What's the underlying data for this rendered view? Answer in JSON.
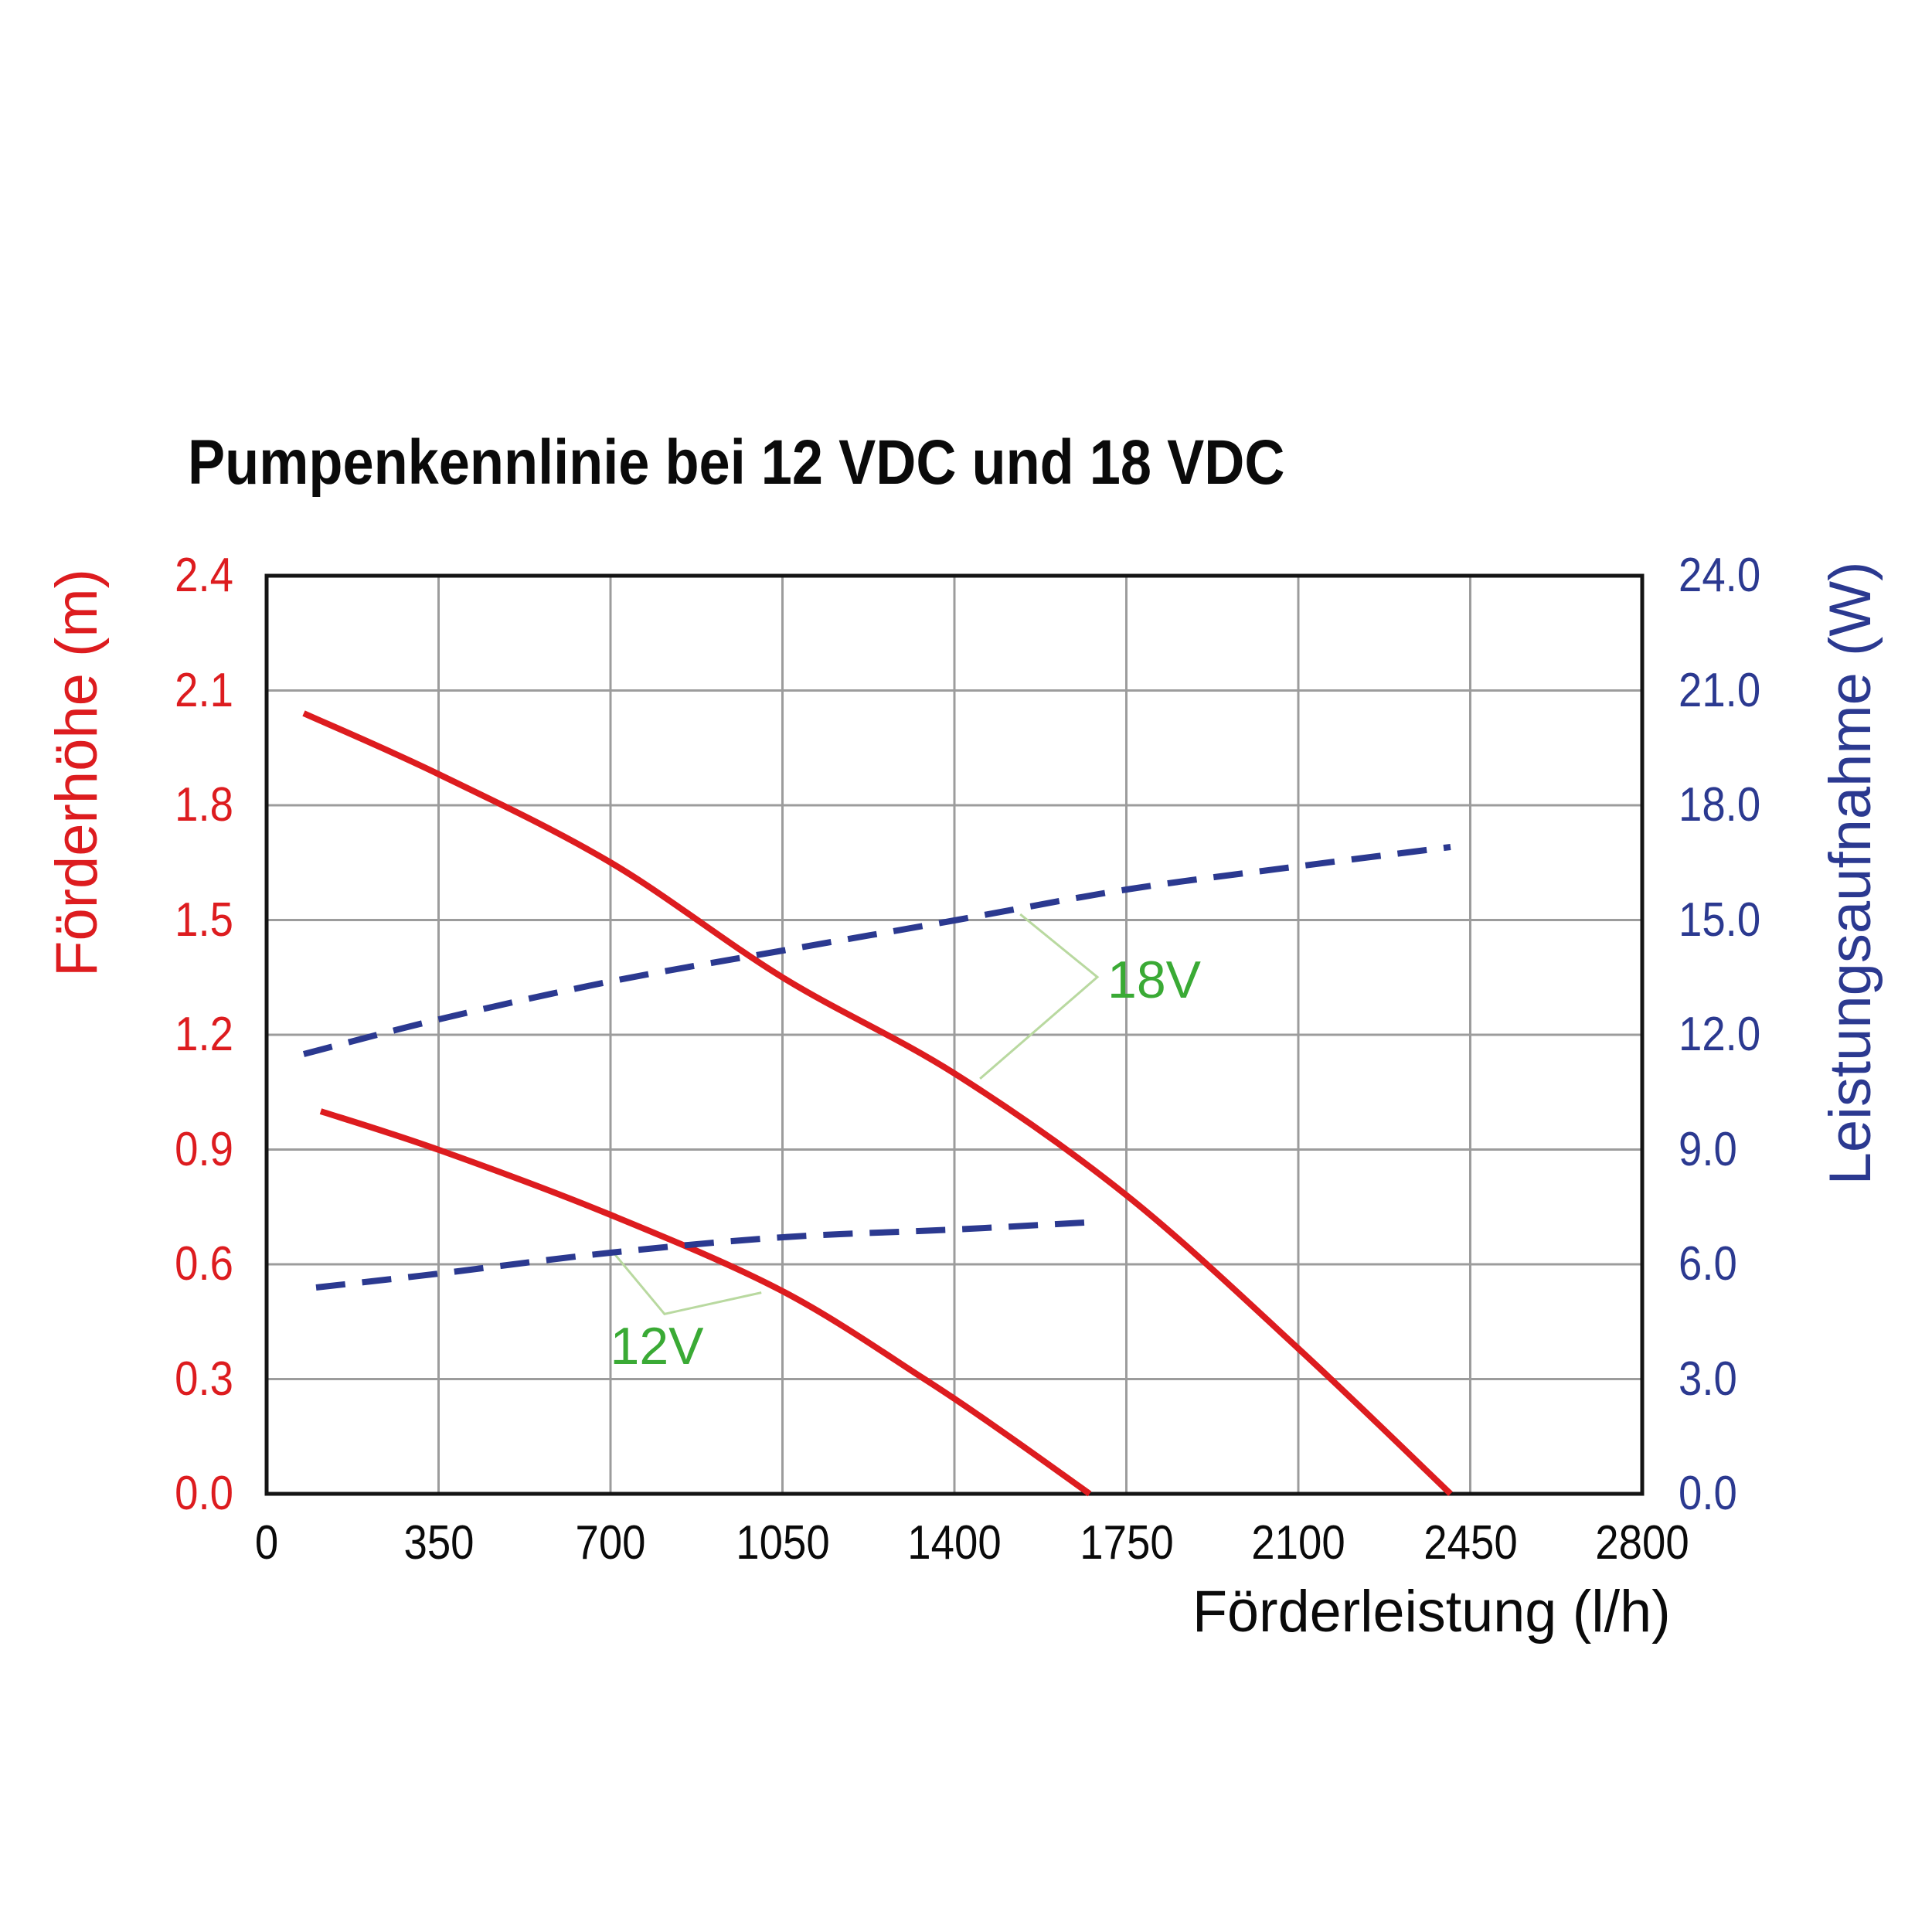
{
  "page": {
    "background": "#ffffff"
  },
  "chart_data": {
    "type": "line",
    "title": "Pumpenkennlinie bei 12 VDC und 18 VDC",
    "grid": true,
    "legend": "none",
    "x_axis": {
      "label": "Förderleistung (l/h)",
      "min": 0,
      "max": 2800,
      "tick_step": 350,
      "ticks": [
        "0",
        "350",
        "700",
        "1050",
        "1400",
        "1750",
        "2100",
        "2450",
        "2800"
      ]
    },
    "y_axis_left": {
      "label": "Förderhöhe (m)",
      "color": "#dd1c1f",
      "min": 0.0,
      "max": 2.4,
      "tick_step": 0.3,
      "ticks": [
        "0.0",
        "0.3",
        "0.6",
        "0.9",
        "1.2",
        "1.5",
        "1.8",
        "2.1",
        "2.4"
      ]
    },
    "y_axis_right": {
      "label": "Leistungsaufnahme (W)",
      "color": "#2b3990",
      "min": 0.0,
      "max": 24.0,
      "tick_step": 3.0,
      "ticks": [
        "0.0",
        "3.0",
        "6.0",
        "9.0",
        "12.0",
        "15.0",
        "18.0",
        "21.0",
        "24.0"
      ]
    },
    "colors": {
      "head_curve": "#dd1c1f",
      "power_curve": "#2b3990",
      "grid": "#9c9c9c",
      "border": "#141414",
      "annotation_text": "#3aaa35",
      "annotation_leader": "#b9d9a0",
      "text": "#0a0a0a"
    },
    "series": [
      {
        "name": "Förderhöhe 18V",
        "axis": "left",
        "style": "solid",
        "color": "#dd1c1f",
        "points": [
          [
            75,
            2.04
          ],
          [
            350,
            1.88
          ],
          [
            700,
            1.65
          ],
          [
            1050,
            1.35
          ],
          [
            1400,
            1.1
          ],
          [
            1750,
            0.78
          ],
          [
            2100,
            0.38
          ],
          [
            2410,
            0.0
          ]
        ]
      },
      {
        "name": "Förderhöhe 12V",
        "axis": "left",
        "style": "solid",
        "color": "#dd1c1f",
        "points": [
          [
            110,
            1.0
          ],
          [
            350,
            0.9
          ],
          [
            700,
            0.73
          ],
          [
            1050,
            0.53
          ],
          [
            1340,
            0.3
          ],
          [
            1500,
            0.16
          ],
          [
            1675,
            0.0
          ]
        ]
      },
      {
        "name": "Leistungsaufnahme 18V",
        "axis": "right",
        "style": "dashed",
        "color": "#2b3990",
        "points": [
          [
            75,
            11.5
          ],
          [
            350,
            12.4
          ],
          [
            700,
            13.4
          ],
          [
            1050,
            14.2
          ],
          [
            1400,
            15.0
          ],
          [
            1750,
            15.8
          ],
          [
            2100,
            16.4
          ],
          [
            2410,
            16.9
          ]
        ]
      },
      {
        "name": "Leistungsaufnahme 12V",
        "axis": "right",
        "style": "dashed",
        "color": "#2b3990",
        "points": [
          [
            100,
            5.4
          ],
          [
            350,
            5.75
          ],
          [
            700,
            6.3
          ],
          [
            1050,
            6.7
          ],
          [
            1400,
            6.9
          ],
          [
            1665,
            7.1
          ]
        ]
      }
    ],
    "annotations": [
      {
        "text": "18V",
        "color": "#3aaa35",
        "leader_color": "#b9d9a0",
        "anchor": "start",
        "label_pos": [
          1712,
          1.343
        ],
        "leader_points": [
          [
            1534,
            1.515
          ],
          [
            1691,
            1.351
          ],
          [
            1452,
            1.085
          ]
        ]
      },
      {
        "text": "12V",
        "color": "#3aaa35",
        "leader_color": "#b9d9a0",
        "anchor": "middle",
        "label_pos": [
          794,
          0.385
        ],
        "leader_points": [
          [
            703,
            0.635
          ],
          [
            810,
            0.47
          ],
          [
            1007,
            0.526
          ]
        ]
      }
    ]
  }
}
